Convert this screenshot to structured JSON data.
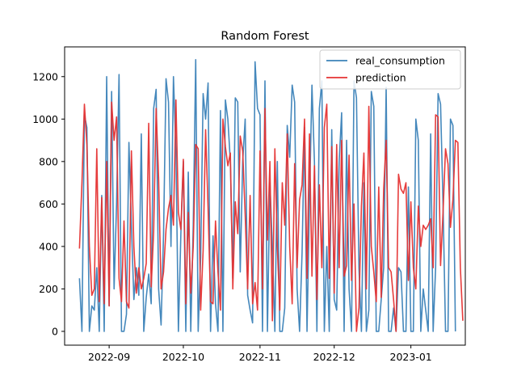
{
  "chart_data": {
    "type": "line",
    "title": "Random Forest",
    "xlabel": "",
    "ylabel": "",
    "x_start": "2022-08-20",
    "xlim": [
      "2022-08-14",
      "2023-01-23"
    ],
    "ylim": [
      -65,
      1340
    ],
    "x_ticks": [
      {
        "date": "2022-09-01",
        "label": "2022-09"
      },
      {
        "date": "2022-10-01",
        "label": "2022-10"
      },
      {
        "date": "2022-11-01",
        "label": "2022-11"
      },
      {
        "date": "2022-12-01",
        "label": "2022-12"
      },
      {
        "date": "2023-01-01",
        "label": "2023-01"
      }
    ],
    "y_ticks": [
      0,
      200,
      400,
      600,
      800,
      1000,
      1200
    ],
    "legend": {
      "placement": "top-right"
    },
    "grid": false,
    "series": [
      {
        "name": "real_consumption",
        "color": "#3b82b8",
        "values": [
          250,
          0,
          1020,
          960,
          0,
          120,
          100,
          300,
          0,
          640,
          0,
          1200,
          120,
          1130,
          200,
          600,
          1210,
          0,
          0,
          80,
          890,
          500,
          150,
          300,
          170,
          930,
          0,
          160,
          270,
          130,
          1050,
          1140,
          200,
          30,
          460,
          1190,
          1080,
          400,
          1200,
          850,
          0,
          460,
          800,
          0,
          750,
          0,
          500,
          1280,
          0,
          350,
          1120,
          1000,
          1170,
          0,
          450,
          130,
          0,
          1040,
          0,
          1090,
          1000,
          800,
          250,
          1100,
          1080,
          280,
          800,
          1000,
          170,
          100,
          40,
          1270,
          1050,
          1020,
          0,
          1180,
          0,
          700,
          400,
          0,
          800,
          0,
          0,
          110,
          970,
          820,
          1160,
          1080,
          200,
          0,
          370,
          960,
          0,
          610,
          1160,
          800,
          0,
          1050,
          1180,
          0,
          400,
          0,
          950,
          150,
          100,
          800,
          1030,
          0,
          900,
          200,
          0,
          1180,
          1100,
          300,
          0,
          700,
          0,
          100,
          1130,
          1060,
          0,
          0,
          150,
          300,
          1150,
          0,
          0,
          110,
          0,
          300,
          280,
          0,
          0,
          680,
          0,
          0,
          1000,
          900,
          0,
          200,
          100,
          0,
          930,
          0,
          300,
          1120,
          1070,
          600,
          0,
          0,
          1000,
          970,
          0
        ]
      },
      {
        "name": "prediction",
        "color": "#e53232",
        "values": [
          390,
          700,
          1070,
          880,
          400,
          170,
          200,
          860,
          140,
          630,
          130,
          800,
          120,
          1080,
          900,
          1010,
          250,
          140,
          520,
          140,
          110,
          850,
          400,
          180,
          300,
          200,
          250,
          320,
          980,
          210,
          470,
          1050,
          720,
          200,
          280,
          480,
          580,
          640,
          500,
          1090,
          560,
          480,
          810,
          130,
          560,
          180,
          400,
          880,
          860,
          100,
          380,
          950,
          580,
          140,
          130,
          520,
          280,
          100,
          1000,
          870,
          780,
          840,
          200,
          610,
          460,
          920,
          850,
          550,
          200,
          640,
          130,
          230,
          100,
          850,
          200,
          1050,
          430,
          800,
          50,
          860,
          400,
          100,
          700,
          500,
          930,
          400,
          130,
          790,
          300,
          620,
          690,
          1000,
          250,
          930,
          260,
          780,
          150,
          690,
          300,
          960,
          1070,
          250,
          870,
          180,
          880,
          300,
          900,
          260,
          310,
          830,
          240,
          600,
          0,
          110,
          590,
          840,
          200,
          1060,
          400,
          280,
          140,
          680,
          160,
          670,
          900,
          300,
          280,
          150,
          0,
          740,
          670,
          650,
          700,
          240,
          610,
          300,
          200,
          590,
          400,
          500,
          480,
          500,
          530,
          300,
          1020,
          1010,
          310,
          560,
          860,
          790,
          490,
          620,
          900,
          890,
          300,
          50
        ]
      }
    ]
  }
}
